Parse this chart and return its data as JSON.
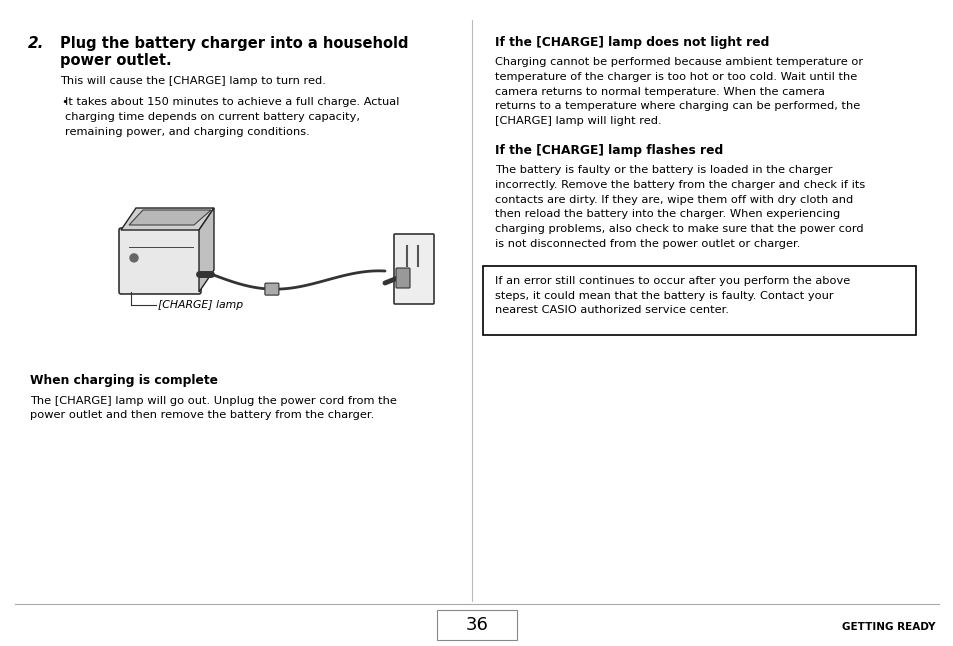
{
  "bg_color": "#ffffff",
  "page_width": 9.54,
  "page_height": 6.46,
  "step_number": "2.",
  "step_title_line1": "Plug the battery charger into a household",
  "step_title_line2": "power outlet.",
  "step_body": "This will cause the [CHARGE] lamp to turn red.",
  "bullet_text_line1": "It takes about 150 minutes to achieve a full charge. Actual",
  "bullet_text_line2": "charging time depends on current battery capacity,",
  "bullet_text_line3": "remaining power, and charging conditions.",
  "charge_lamp_label": "[CHARGE] lamp",
  "when_charging_title": "When charging is complete",
  "when_charging_body_line1": "The [CHARGE] lamp will go out. Unplug the power cord from the",
  "when_charging_body_line2": "power outlet and then remove the battery from the charger.",
  "right_heading1": "If the [CHARGE] lamp does not light red",
  "right_body1": [
    "Charging cannot be performed because ambient temperature or",
    "temperature of the charger is too hot or too cold. Wait until the",
    "camera returns to normal temperature. When the camera",
    "returns to a temperature where charging can be performed, the",
    "[CHARGE] lamp will light red."
  ],
  "right_heading2": "If the [CHARGE] lamp flashes red",
  "right_body2": [
    "The battery is faulty or the battery is loaded in the charger",
    "incorrectly. Remove the battery from the charger and check if its",
    "contacts are dirty. If they are, wipe them off with dry cloth and",
    "then reload the battery into the charger. When experiencing",
    "charging problems, also check to make sure that the power cord",
    "is not disconnected from the power outlet or charger."
  ],
  "box_lines": [
    "If an error still continues to occur after you perform the above",
    "steps, it could mean that the battery is faulty. Contact your",
    "nearest CASIO authorized service center."
  ],
  "page_number": "36",
  "footer_right": "GETTING READY",
  "text_color": "#000000",
  "divider_color": "#bbbbbb",
  "footer_line_color": "#aaaaaa"
}
